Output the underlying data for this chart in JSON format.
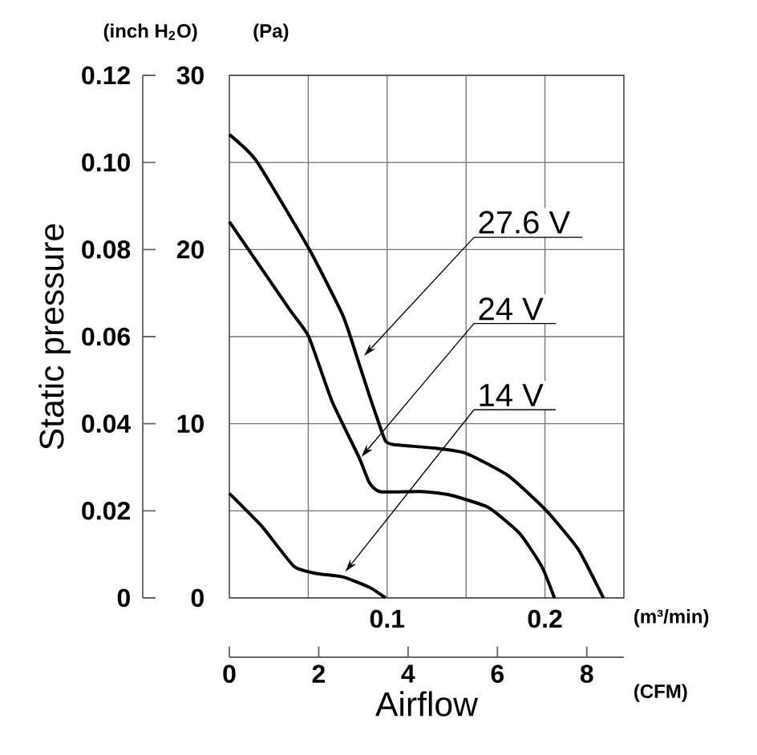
{
  "chart_data": {
    "type": "line",
    "xlabel": "Airflow",
    "y2label": "Static pressure",
    "xlim": [
      0,
      0.25
    ],
    "xticks": [
      {
        "value": 0.05,
        "label": null
      },
      0.1,
      {
        "value": 0.15,
        "label": null
      },
      0.2
    ],
    "x2lim": [
      0,
      8.83
    ],
    "x2ticks": [
      0,
      2,
      4,
      6,
      8
    ],
    "ylim": [
      0,
      30
    ],
    "yticks": [
      0,
      {
        "value": 5,
        "label": null
      },
      10,
      {
        "value": 15,
        "label": null
      },
      20,
      {
        "value": 25,
        "label": null
      },
      30
    ],
    "y2lim": [
      0,
      0.12
    ],
    "y2ticks": [
      0,
      0.02,
      0.04,
      0.06,
      0.08,
      {
        "value": 0.1,
        "label": "0.10"
      },
      0.12
    ],
    "grid": true,
    "marker": "none",
    "line_style": "solid",
    "series": [
      {
        "color": "#000000",
        "x": [
          0,
          0.017,
          0.0507,
          0.072,
          0.082,
          0.0888,
          0.0956,
          0.099,
          0.104,
          0.13,
          0.15,
          0.177,
          0.201,
          0.221,
          0.237
        ],
        "values": [
          26.6,
          25.1,
          20.0,
          16.2,
          13.5,
          11.6,
          9.8,
          9.0,
          8.8,
          8.6,
          8.3,
          7.0,
          5.0,
          2.8,
          0
        ]
      },
      {
        "color": "#000000",
        "x": [
          0,
          0.0378,
          0.0503,
          0.065,
          0.082,
          0.0888,
          0.0956,
          0.123,
          0.14,
          0.164,
          0.184,
          0.198,
          0.206
        ],
        "values": [
          21.6,
          16.6,
          15.0,
          11.3,
          8.1,
          6.6,
          6.1,
          6.1,
          5.9,
          5.2,
          3.7,
          1.8,
          0
        ]
      },
      {
        "color": "#000000",
        "x": [
          0,
          0.0207,
          0.041,
          0.055,
          0.072,
          0.089,
          0.099
        ],
        "values": [
          6.0,
          4.1,
          1.8,
          1.4,
          1.2,
          0.6,
          0
        ]
      }
    ],
    "annotations": [
      {
        "text": "27.6 V",
        "x": 0.0854,
        "y": 13.9
      },
      {
        "text": "24 V",
        "x": 0.0837,
        "y": 8.1
      },
      {
        "text": "14 V",
        "x": 0.0735,
        "y": 1.5
      },
      "(inch H$_{2}$O)",
      "(Pa)",
      "(m³/min)",
      "(CFM)"
    ]
  }
}
